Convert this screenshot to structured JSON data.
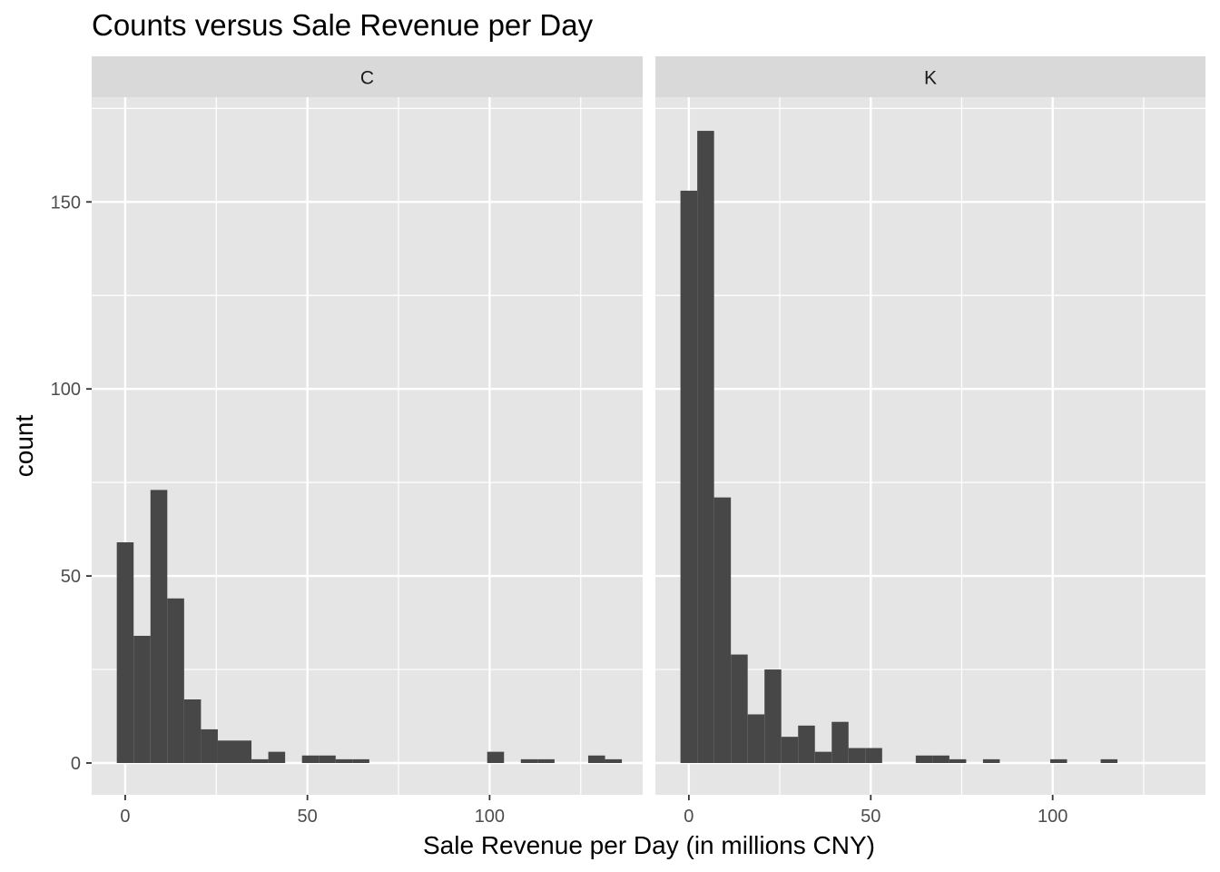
{
  "chart_data": {
    "type": "histogram",
    "title": "Counts versus Sale Revenue per Day",
    "xlabel": "Sale Revenue per Day (in millions CNY)",
    "ylabel": "count",
    "xlim": [
      -9.2,
      142
    ],
    "ylim": [
      -8.5,
      178
    ],
    "x_ticks": [
      0,
      50,
      100
    ],
    "y_ticks": [
      0,
      50,
      100,
      150
    ],
    "bin_width": 4.62,
    "facets": [
      {
        "label": "C",
        "bins": [
          {
            "x": 0,
            "count": 59
          },
          {
            "x": 4.62,
            "count": 34
          },
          {
            "x": 9.24,
            "count": 73
          },
          {
            "x": 13.86,
            "count": 44
          },
          {
            "x": 18.48,
            "count": 17
          },
          {
            "x": 23.1,
            "count": 9
          },
          {
            "x": 27.72,
            "count": 6
          },
          {
            "x": 32.34,
            "count": 6
          },
          {
            "x": 36.96,
            "count": 1
          },
          {
            "x": 41.58,
            "count": 3
          },
          {
            "x": 46.2,
            "count": 0
          },
          {
            "x": 50.82,
            "count": 2
          },
          {
            "x": 55.44,
            "count": 2
          },
          {
            "x": 60.06,
            "count": 1
          },
          {
            "x": 64.68,
            "count": 1
          },
          {
            "x": 101.64,
            "count": 3
          },
          {
            "x": 110.88,
            "count": 1
          },
          {
            "x": 115.5,
            "count": 1
          },
          {
            "x": 129.36,
            "count": 2
          },
          {
            "x": 133.98,
            "count": 1
          }
        ]
      },
      {
        "label": "K",
        "bins": [
          {
            "x": 0,
            "count": 153
          },
          {
            "x": 4.62,
            "count": 169
          },
          {
            "x": 9.24,
            "count": 71
          },
          {
            "x": 13.86,
            "count": 29
          },
          {
            "x": 18.48,
            "count": 13
          },
          {
            "x": 23.1,
            "count": 25
          },
          {
            "x": 27.72,
            "count": 7
          },
          {
            "x": 32.34,
            "count": 10
          },
          {
            "x": 36.96,
            "count": 3
          },
          {
            "x": 41.58,
            "count": 11
          },
          {
            "x": 46.2,
            "count": 4
          },
          {
            "x": 50.82,
            "count": 4
          },
          {
            "x": 64.68,
            "count": 2
          },
          {
            "x": 69.3,
            "count": 2
          },
          {
            "x": 73.92,
            "count": 1
          },
          {
            "x": 83.16,
            "count": 1
          },
          {
            "x": 101.64,
            "count": 1
          },
          {
            "x": 115.5,
            "count": 1
          }
        ]
      }
    ],
    "colors": {
      "panel_bg": "#e5e5e5",
      "strip_bg": "#d9d9d9",
      "grid": "#ffffff",
      "bar": "#474747",
      "tick_text": "#4d4d4d"
    }
  }
}
